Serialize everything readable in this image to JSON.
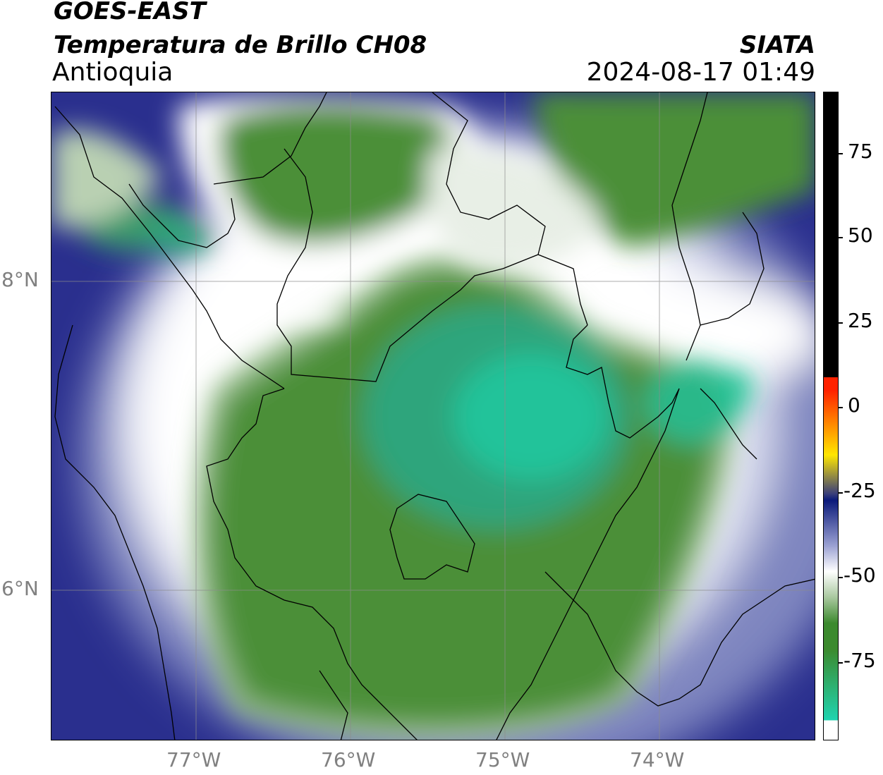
{
  "header": {
    "satellite": "GOES-EAST",
    "product": "Temperatura de Brillo CH08",
    "region": "Antioquia",
    "agency": "SIATA",
    "datetime": "2024-08-17 01:49"
  },
  "map": {
    "lat_labels": [
      "8°N",
      "6°N"
    ],
    "lon_labels": [
      "77°W",
      "76°W",
      "75°W",
      "74°W"
    ],
    "gridlines": true
  },
  "colorbar": {
    "labels": [
      "75",
      "50",
      "25",
      "0",
      "-25",
      "-50",
      "-75"
    ],
    "colors": {
      "warm": "#000000",
      "red": "#ff2200",
      "yellow": "#ffe600",
      "navy": "#0b1a7a",
      "white": "#ffffff",
      "green": "#3c8a2e",
      "cyan": "#1fd4b0"
    }
  }
}
